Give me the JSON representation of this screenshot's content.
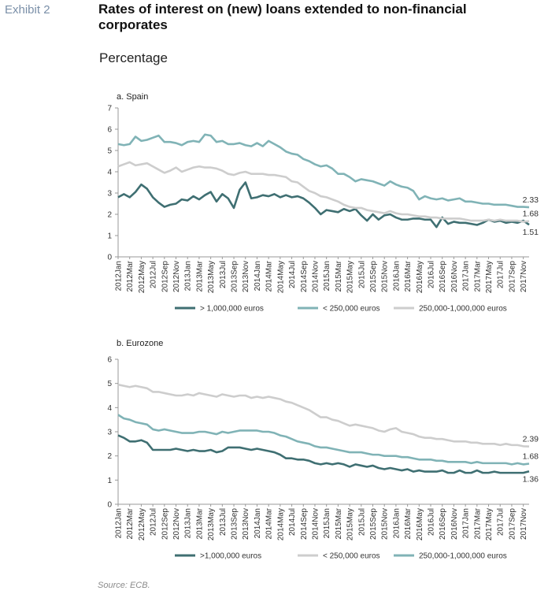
{
  "exhibit": "Exhibit 2",
  "title": "Rates of interest on (new) loans extended to non-financial corporates",
  "subtitle": "Percentage",
  "source": "Source: ECB.",
  "chart_data": [
    {
      "type": "line",
      "title": "a. Spain",
      "categories": [
        "2012Jan",
        null,
        "2012Mar",
        null,
        "2012May",
        null,
        "2012Jul",
        null,
        "2012Sep",
        null,
        "2012Nov",
        null,
        "2013Jan",
        null,
        "2013Mar",
        null,
        "2013May",
        null,
        "2013Jul",
        null,
        "2013Sep",
        null,
        "2013Nov",
        null,
        "2014Jan",
        null,
        "2014Mar",
        null,
        "2014May",
        null,
        "2014Jul",
        null,
        "2014Sep",
        null,
        "2014Nov",
        null,
        "2015Jan",
        null,
        "2015Mar",
        null,
        "2015May",
        null,
        "2015Jul",
        null,
        "2015Sep",
        null,
        "2015Nov",
        null,
        "2016Jan",
        null,
        "2016Mar",
        null,
        "2016May",
        null,
        "2016Jul",
        null,
        "2016Sep",
        null,
        "2016Nov",
        null,
        "2017Jan",
        null,
        "2017Mar",
        null,
        "2017May",
        null,
        "2017Jul",
        null,
        "2017Sep",
        null,
        "2017Nov",
        null
      ],
      "ylim": [
        0,
        7
      ],
      "yticks": [
        0,
        1,
        2,
        3,
        4,
        5,
        6,
        7
      ],
      "series": [
        {
          "name": "> 1,000,000 euros",
          "color": "#3f6f72",
          "values": [
            2.8,
            2.95,
            2.8,
            3.05,
            3.4,
            3.2,
            2.8,
            2.55,
            2.35,
            2.45,
            2.5,
            2.7,
            2.65,
            2.85,
            2.7,
            2.9,
            3.05,
            2.6,
            2.95,
            2.75,
            2.3,
            3.15,
            3.5,
            2.75,
            2.8,
            2.9,
            2.85,
            2.95,
            2.8,
            2.9,
            2.8,
            2.85,
            2.75,
            2.55,
            2.3,
            2.0,
            2.2,
            2.15,
            2.1,
            2.25,
            2.15,
            2.25,
            1.95,
            1.7,
            2.0,
            1.75,
            1.95,
            2.0,
            1.85,
            1.75,
            1.75,
            1.8,
            1.8,
            1.75,
            1.75,
            1.4,
            1.85,
            1.55,
            1.65,
            1.6,
            1.6,
            1.55,
            1.5,
            1.6,
            1.75,
            1.65,
            1.7,
            1.6,
            1.65,
            1.6,
            1.7,
            1.51
          ]
        },
        {
          "name": "< 250,000 euros",
          "color": "#80b3b6",
          "values": [
            5.3,
            5.25,
            5.3,
            5.65,
            5.45,
            5.5,
            5.6,
            5.7,
            5.4,
            5.4,
            5.35,
            5.25,
            5.4,
            5.45,
            5.4,
            5.75,
            5.7,
            5.4,
            5.45,
            5.3,
            5.3,
            5.35,
            5.25,
            5.2,
            5.35,
            5.2,
            5.45,
            5.3,
            5.15,
            4.95,
            4.85,
            4.8,
            4.6,
            4.5,
            4.35,
            4.25,
            4.3,
            4.15,
            3.9,
            3.9,
            3.75,
            3.55,
            3.65,
            3.6,
            3.55,
            3.45,
            3.35,
            3.55,
            3.4,
            3.3,
            3.25,
            3.1,
            2.7,
            2.85,
            2.75,
            2.7,
            2.75,
            2.65,
            2.7,
            2.75,
            2.6,
            2.6,
            2.55,
            2.5,
            2.5,
            2.45,
            2.45,
            2.45,
            2.4,
            2.35,
            2.35,
            2.33
          ]
        },
        {
          "name": "250,000-1,000,000 euros",
          "color": "#cdcdcd",
          "values": [
            4.25,
            4.35,
            4.45,
            4.3,
            4.35,
            4.4,
            4.25,
            4.1,
            3.95,
            4.05,
            4.2,
            4.0,
            4.1,
            4.2,
            4.25,
            4.2,
            4.2,
            4.15,
            4.05,
            3.9,
            3.85,
            3.95,
            4.0,
            3.9,
            3.9,
            3.9,
            3.85,
            3.85,
            3.8,
            3.75,
            3.55,
            3.5,
            3.3,
            3.1,
            3.0,
            2.85,
            2.8,
            2.7,
            2.6,
            2.45,
            2.35,
            2.3,
            2.3,
            2.2,
            2.15,
            2.1,
            2.05,
            2.15,
            2.05,
            2.0,
            2.0,
            1.95,
            1.9,
            1.9,
            1.85,
            1.85,
            1.8,
            1.8,
            1.8,
            1.8,
            1.75,
            1.7,
            1.7,
            1.7,
            1.75,
            1.7,
            1.75,
            1.7,
            1.7,
            1.7,
            1.65,
            1.68
          ]
        }
      ]
    },
    {
      "type": "line",
      "title": "b. Eurozone",
      "categories": [
        "2012Jan",
        null,
        "2012Mar",
        null,
        "2012May",
        null,
        "2012Jul",
        null,
        "2012Sep",
        null,
        "2012Nov",
        null,
        "2013Jan",
        null,
        "2013Mar",
        null,
        "2013May",
        null,
        "2013Jul",
        null,
        "2013Sep",
        null,
        "2013Nov",
        null,
        "2014Jan",
        null,
        "2014Mar",
        null,
        "2014May",
        null,
        "2014Jul",
        null,
        "2014Sep",
        null,
        "2014Nov",
        null,
        "2015Jan",
        null,
        "2015Mar",
        null,
        "2015May",
        null,
        "2015Jul",
        null,
        "2015Sep",
        null,
        "2015Nov",
        null,
        "2016Jan",
        null,
        "2016Mar",
        null,
        "2016May",
        null,
        "2016Jul",
        null,
        "2016Sep",
        null,
        "2016Nov",
        null,
        "2017Jan",
        null,
        "2017Mar",
        null,
        "2017May",
        null,
        "2017Jul",
        null,
        "2017Sep",
        null,
        "2017Nov",
        null
      ],
      "ylim": [
        0,
        6
      ],
      "yticks": [
        0,
        1,
        2,
        3,
        4,
        5,
        6
      ],
      "series": [
        {
          "name": ">1,000,000 euros",
          "color": "#3f6f72",
          "values": [
            2.85,
            2.75,
            2.6,
            2.6,
            2.65,
            2.55,
            2.25,
            2.25,
            2.25,
            2.25,
            2.3,
            2.25,
            2.2,
            2.25,
            2.2,
            2.2,
            2.25,
            2.15,
            2.2,
            2.35,
            2.35,
            2.35,
            2.3,
            2.25,
            2.3,
            2.25,
            2.2,
            2.15,
            2.05,
            1.9,
            1.9,
            1.85,
            1.85,
            1.8,
            1.7,
            1.65,
            1.7,
            1.65,
            1.7,
            1.65,
            1.55,
            1.65,
            1.6,
            1.55,
            1.6,
            1.5,
            1.45,
            1.5,
            1.45,
            1.4,
            1.45,
            1.35,
            1.4,
            1.35,
            1.35,
            1.35,
            1.4,
            1.3,
            1.3,
            1.4,
            1.3,
            1.3,
            1.4,
            1.3,
            1.3,
            1.35,
            1.3,
            1.3,
            1.3,
            1.3,
            1.3,
            1.36
          ]
        },
        {
          "name": "< 250,000 euros",
          "color": "#cdcdcd",
          "values": [
            4.95,
            4.9,
            4.85,
            4.9,
            4.85,
            4.8,
            4.65,
            4.65,
            4.6,
            4.55,
            4.5,
            4.5,
            4.55,
            4.5,
            4.6,
            4.55,
            4.5,
            4.45,
            4.55,
            4.5,
            4.45,
            4.5,
            4.5,
            4.4,
            4.45,
            4.4,
            4.45,
            4.4,
            4.35,
            4.25,
            4.2,
            4.1,
            4.0,
            3.9,
            3.75,
            3.6,
            3.6,
            3.5,
            3.45,
            3.35,
            3.25,
            3.3,
            3.25,
            3.2,
            3.15,
            3.05,
            3.0,
            3.1,
            3.15,
            3.0,
            2.95,
            2.9,
            2.8,
            2.75,
            2.75,
            2.7,
            2.7,
            2.65,
            2.6,
            2.6,
            2.6,
            2.55,
            2.55,
            2.5,
            2.5,
            2.5,
            2.45,
            2.5,
            2.45,
            2.45,
            2.4,
            2.39
          ]
        },
        {
          "name": "250,000-1,000,000 euros",
          "color": "#80b3b6",
          "values": [
            3.7,
            3.55,
            3.5,
            3.4,
            3.35,
            3.3,
            3.1,
            3.05,
            3.1,
            3.05,
            3.0,
            2.95,
            2.95,
            2.95,
            3.0,
            3.0,
            2.95,
            2.9,
            3.0,
            2.95,
            3.0,
            3.05,
            3.05,
            3.05,
            3.05,
            3.0,
            3.0,
            2.95,
            2.85,
            2.8,
            2.7,
            2.6,
            2.55,
            2.5,
            2.4,
            2.35,
            2.35,
            2.3,
            2.25,
            2.2,
            2.15,
            2.15,
            2.15,
            2.1,
            2.05,
            2.05,
            2.0,
            2.0,
            2.0,
            1.95,
            1.95,
            1.9,
            1.85,
            1.85,
            1.85,
            1.8,
            1.8,
            1.75,
            1.75,
            1.75,
            1.75,
            1.7,
            1.75,
            1.7,
            1.7,
            1.7,
            1.7,
            1.7,
            1.65,
            1.7,
            1.65,
            1.68
          ]
        }
      ]
    }
  ]
}
